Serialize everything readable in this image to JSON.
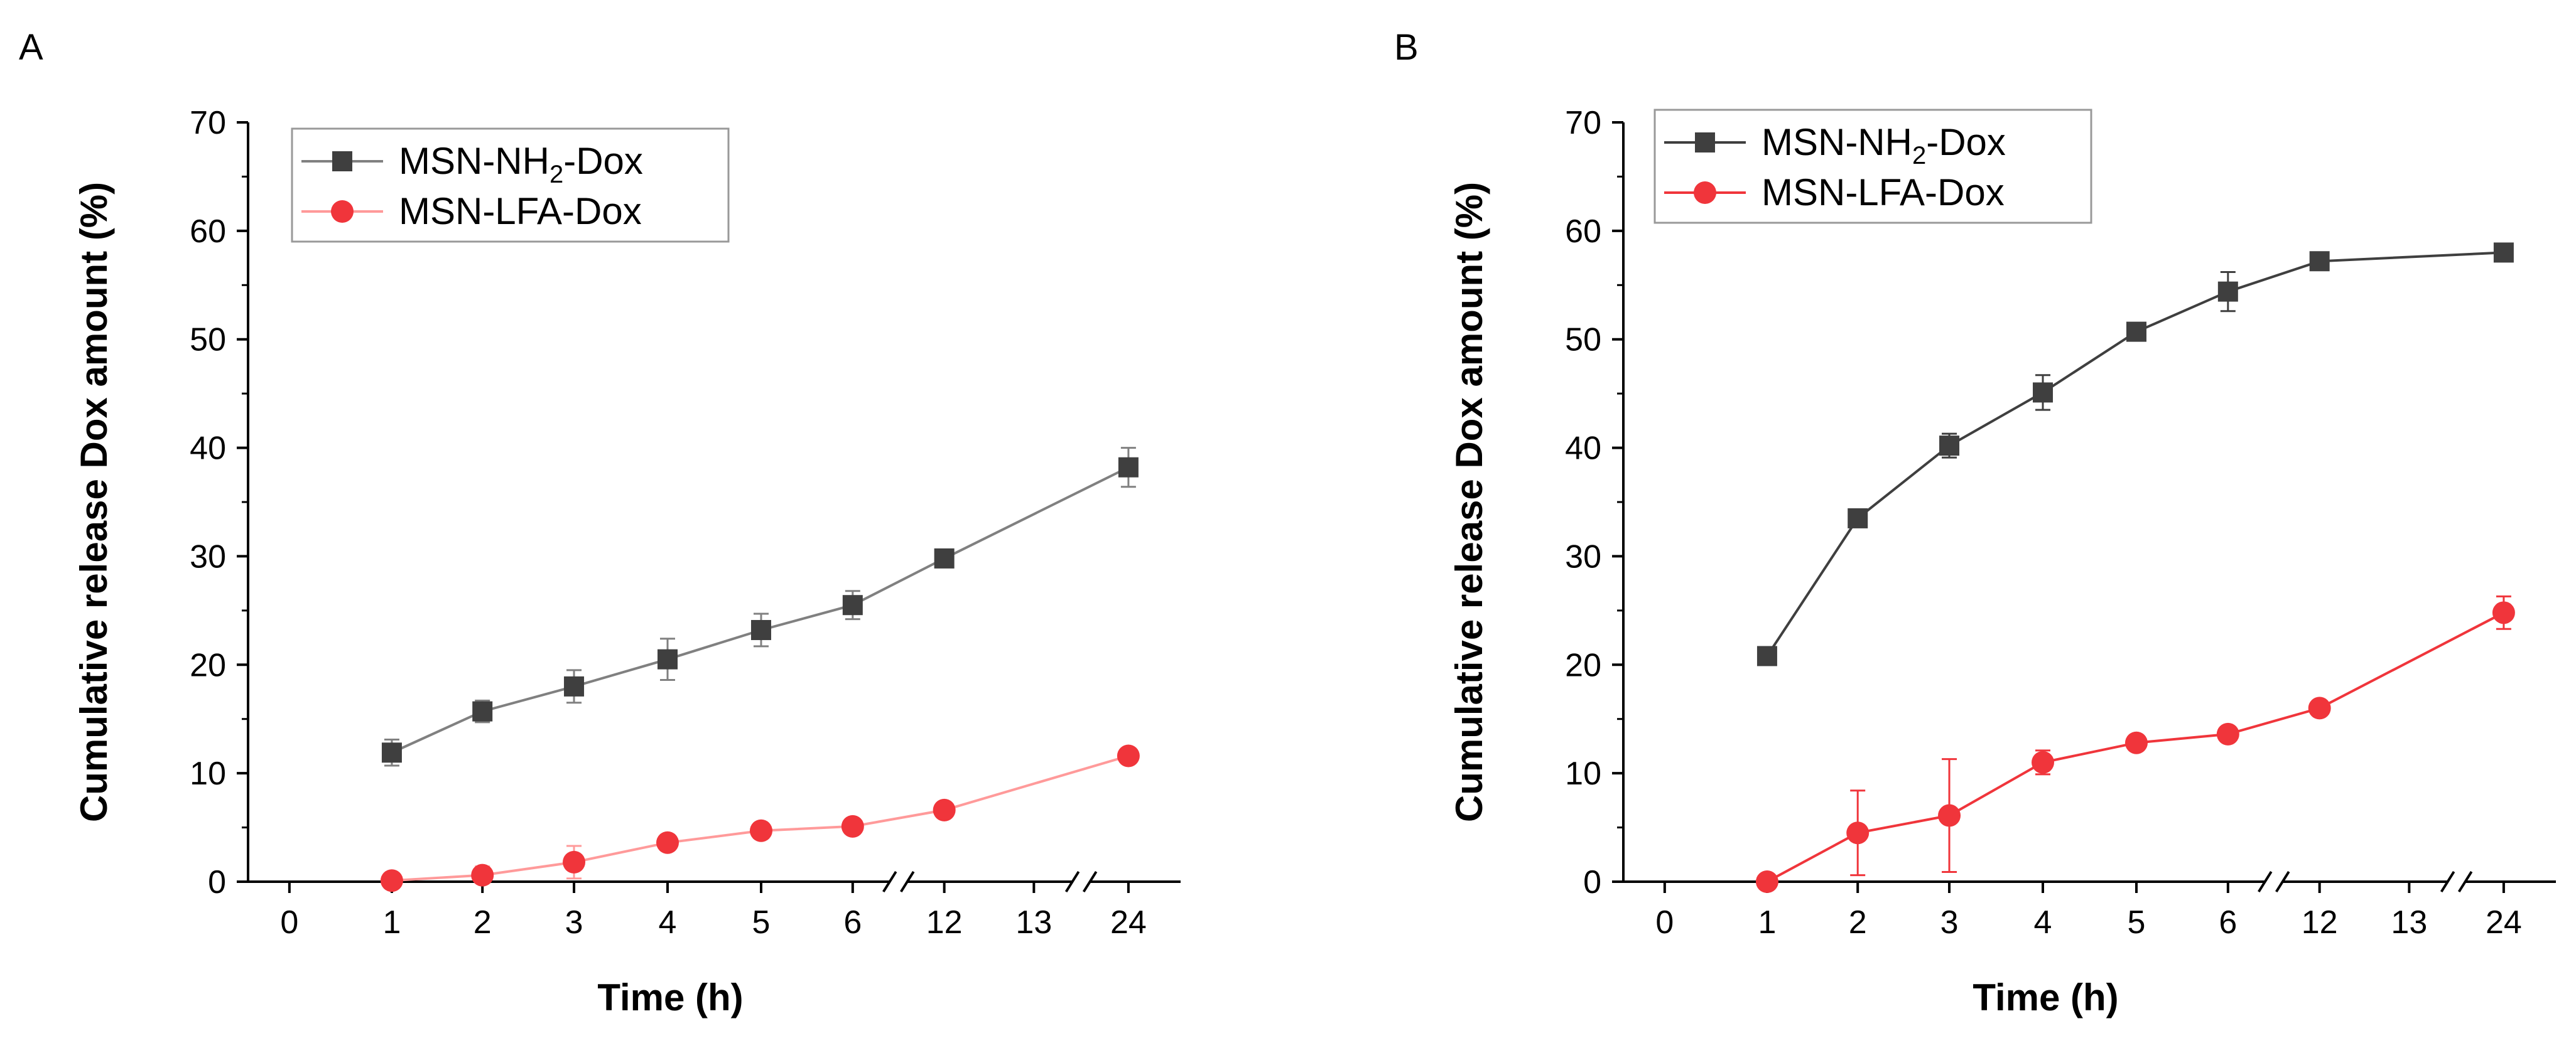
{
  "chart_data": [
    {
      "panel": "A",
      "type": "line",
      "xlabel": "Time (h)",
      "ylabel": "Cumulative release Dox amount (%)",
      "ylim": [
        0,
        70
      ],
      "yticks": [
        "0",
        "10",
        "20",
        "30",
        "40",
        "50",
        "60",
        "70"
      ],
      "xticks": [
        "0",
        "1",
        "2",
        "3",
        "4",
        "5",
        "6",
        "12",
        "13",
        "24"
      ],
      "axis_breaks": "between 6 and 12, between 13 and 24",
      "legend_position": "top-left",
      "series": [
        {
          "name_base": "MSN-NH",
          "name_sub": "2",
          "name_tail": "-Dox",
          "color": "#808080",
          "marker_color": "#3f3f3f",
          "marker": "square",
          "x": [
            "1",
            "2",
            "3",
            "4",
            "5",
            "6",
            "12",
            "24"
          ],
          "values": [
            11.9,
            15.7,
            18.0,
            20.5,
            23.2,
            25.5,
            29.8,
            38.2
          ],
          "errors": [
            1.2,
            1.0,
            1.5,
            1.9,
            1.5,
            1.3,
            0.4,
            1.8
          ]
        },
        {
          "name_base": "MSN-LFA-Dox",
          "name_sub": "",
          "name_tail": "",
          "color": "#ff9a9a",
          "marker_color": "#f0353b",
          "marker": "circle",
          "x": [
            "1",
            "2",
            "3",
            "4",
            "5",
            "6",
            "12",
            "24"
          ],
          "values": [
            0.1,
            0.6,
            1.8,
            3.6,
            4.7,
            5.1,
            6.6,
            11.6
          ],
          "errors": [
            0.2,
            0.8,
            1.5,
            0.7,
            0.3,
            0.3,
            0.3,
            0.6
          ]
        }
      ]
    },
    {
      "panel": "B",
      "type": "line",
      "xlabel": "Time (h)",
      "ylabel": "Cumulative release Dox amount (%)",
      "ylim": [
        0,
        70
      ],
      "yticks": [
        "0",
        "10",
        "20",
        "30",
        "40",
        "50",
        "60",
        "70"
      ],
      "xticks": [
        "0",
        "1",
        "2",
        "3",
        "4",
        "5",
        "6",
        "12",
        "13",
        "24"
      ],
      "axis_breaks": "between 6 and 12, between 13 and 24",
      "legend_position": "top-left",
      "series": [
        {
          "name_base": "MSN-NH",
          "name_sub": "2",
          "name_tail": "-Dox",
          "color": "#3f3f3f",
          "marker_color": "#3f3f3f",
          "marker": "square",
          "x": [
            "1",
            "2",
            "3",
            "4",
            "5",
            "6",
            "12",
            "24"
          ],
          "values": [
            20.8,
            33.5,
            40.2,
            45.1,
            50.7,
            54.4,
            57.2,
            58.0
          ],
          "errors": [
            0.4,
            0.4,
            1.1,
            1.6,
            0.5,
            1.8,
            0.6,
            0.5
          ]
        },
        {
          "name_base": "MSN-LFA-Dox",
          "name_sub": "",
          "name_tail": "",
          "color": "#f0353b",
          "marker_color": "#f0353b",
          "marker": "circle",
          "x": [
            "1",
            "2",
            "3",
            "4",
            "5",
            "6",
            "12",
            "24"
          ],
          "values": [
            0.0,
            4.5,
            6.1,
            11.0,
            12.8,
            13.6,
            16.0,
            24.8
          ],
          "errors": [
            0.2,
            3.9,
            5.2,
            1.1,
            0.3,
            0.3,
            0.3,
            1.5
          ]
        }
      ]
    }
  ]
}
